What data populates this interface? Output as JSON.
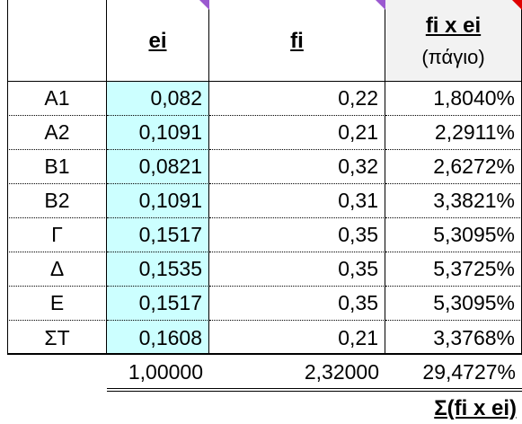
{
  "header": {
    "col_ei": "ei",
    "col_fi": "fi",
    "col_product": "fi x ei",
    "col_product_sub": "(πάγιο)"
  },
  "rows": [
    {
      "label": "A1",
      "ei": "0,082",
      "fi": "0,22",
      "product": "1,8040%"
    },
    {
      "label": "A2",
      "ei": "0,1091",
      "fi": "0,21",
      "product": "2,2911%"
    },
    {
      "label": "B1",
      "ei": "0,0821",
      "fi": "0,32",
      "product": "2,6272%"
    },
    {
      "label": "B2",
      "ei": "0,1091",
      "fi": "0,31",
      "product": "3,3821%"
    },
    {
      "label": "Γ",
      "ei": "0,1517",
      "fi": "0,35",
      "product": "5,3095%"
    },
    {
      "label": "Δ",
      "ei": "0,1535",
      "fi": "0,35",
      "product": "5,3725%"
    },
    {
      "label": "E",
      "ei": "0,1517",
      "fi": "0,35",
      "product": "5,3095%"
    },
    {
      "label": "ΣΤ",
      "ei": "0,1608",
      "fi": "0,21",
      "product": "3,3768%"
    }
  ],
  "totals": {
    "ei_sum": "1,00000",
    "fi_sum": "2,32000",
    "product_sum": "29,4727%",
    "formula_label": "Σ(fi x ei)"
  },
  "colors": {
    "ei_column_fill": "#ccffff",
    "header_fill": "#f2f2f2",
    "comment_marker_purple": "#9b59d0",
    "comment_marker_red": "#e00000"
  },
  "icons": [
    "comment-indicator-icon"
  ]
}
